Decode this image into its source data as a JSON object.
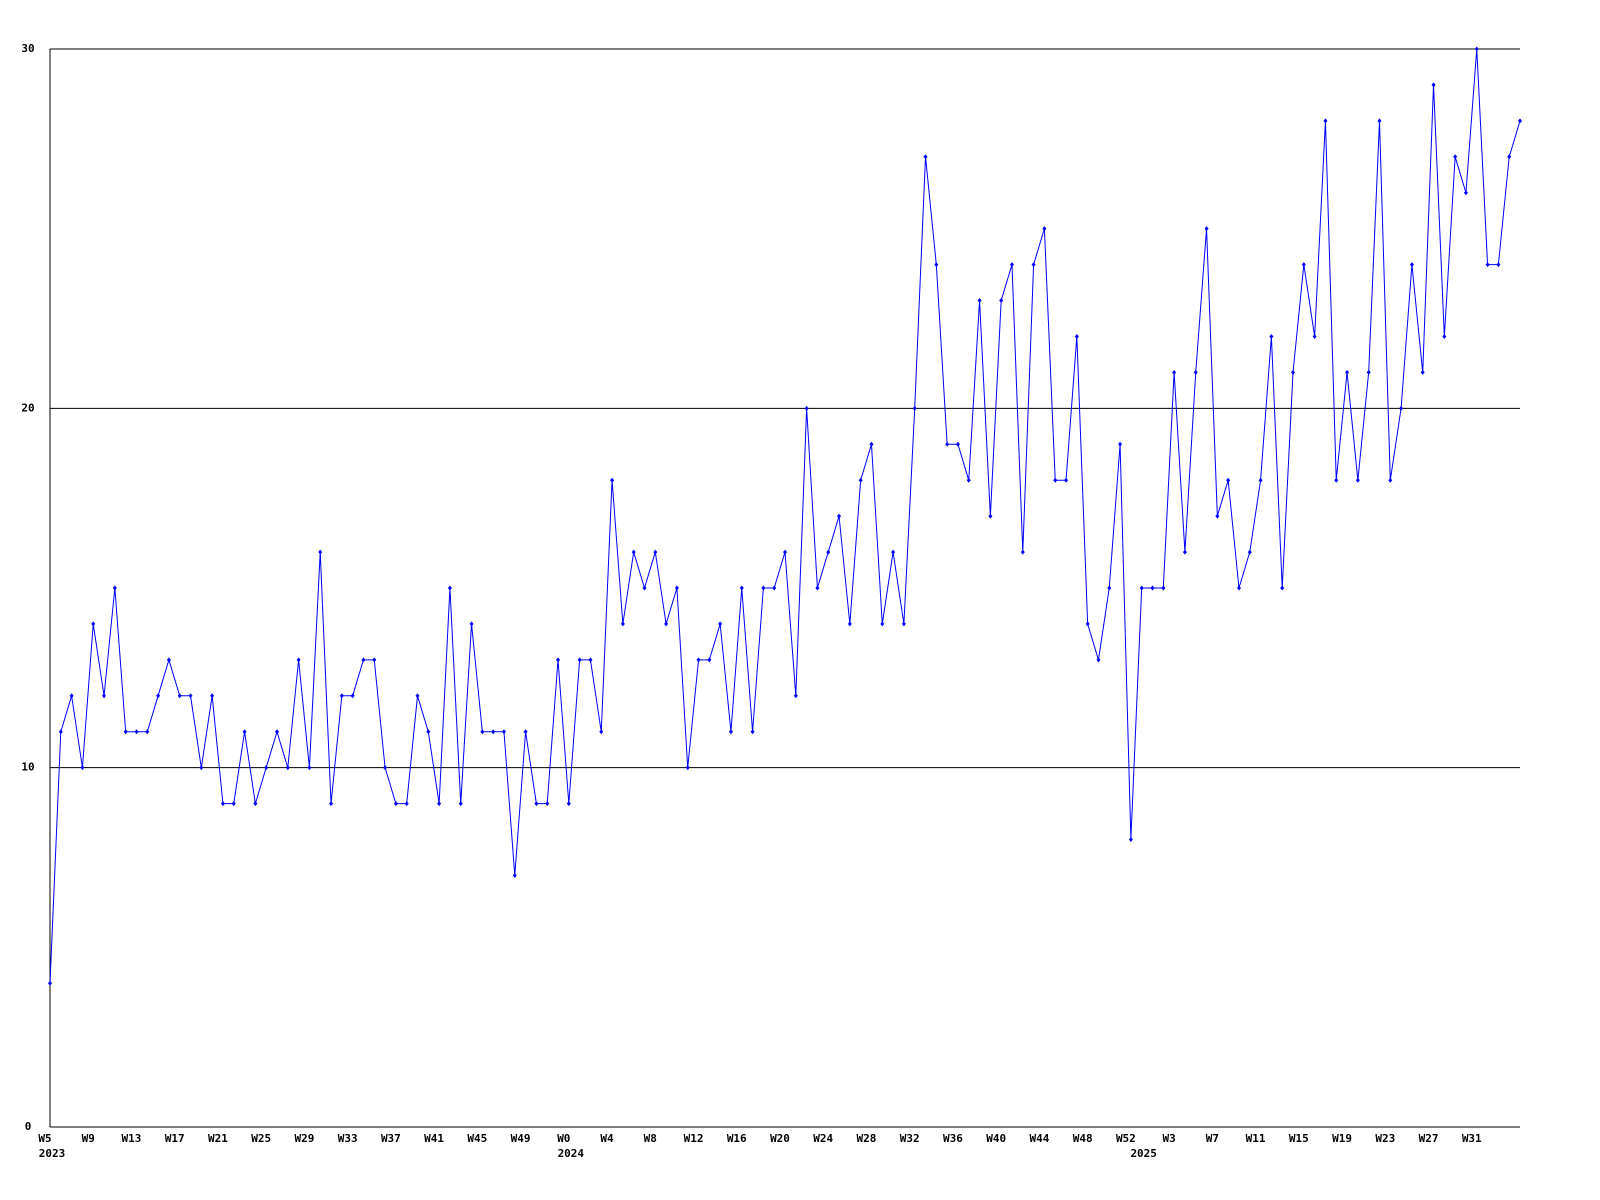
{
  "chart_data": {
    "type": "line",
    "color": "#0000ff",
    "grid": true,
    "ylim": [
      0,
      30
    ],
    "yticks": [
      0,
      10,
      20,
      30
    ],
    "categories": [
      {
        "week": "W5",
        "year": "2023"
      },
      null,
      null,
      null,
      {
        "week": "W9"
      },
      null,
      null,
      null,
      {
        "week": "W13"
      },
      null,
      null,
      null,
      {
        "week": "W17"
      },
      null,
      null,
      null,
      {
        "week": "W21"
      },
      null,
      null,
      null,
      {
        "week": "W25"
      },
      null,
      null,
      null,
      {
        "week": "W29"
      },
      null,
      null,
      null,
      {
        "week": "W33"
      },
      null,
      null,
      null,
      {
        "week": "W37"
      },
      null,
      null,
      null,
      {
        "week": "W41"
      },
      null,
      null,
      null,
      {
        "week": "W45"
      },
      null,
      null,
      null,
      {
        "week": "W49"
      },
      null,
      null,
      null,
      {
        "week": "W0",
        "year": "2024"
      },
      null,
      null,
      null,
      {
        "week": "W4"
      },
      null,
      null,
      null,
      {
        "week": "W8"
      },
      null,
      null,
      null,
      {
        "week": "W12"
      },
      null,
      null,
      null,
      {
        "week": "W16"
      },
      null,
      null,
      null,
      {
        "week": "W20"
      },
      null,
      null,
      null,
      {
        "week": "W24"
      },
      null,
      null,
      null,
      {
        "week": "W28"
      },
      null,
      null,
      null,
      {
        "week": "W32"
      },
      null,
      null,
      null,
      {
        "week": "W36"
      },
      null,
      null,
      null,
      {
        "week": "W40"
      },
      null,
      null,
      null,
      {
        "week": "W44"
      },
      null,
      null,
      null,
      {
        "week": "W48"
      },
      null,
      null,
      null,
      {
        "week": "W52"
      },
      {
        "year": "2025"
      },
      null,
      null,
      {
        "week": "W3"
      },
      null,
      null,
      null,
      {
        "week": "W7"
      },
      null,
      null,
      null,
      {
        "week": "W11"
      },
      null,
      null,
      null,
      {
        "week": "W15"
      },
      null,
      null,
      null,
      {
        "week": "W19"
      },
      null,
      null,
      null,
      {
        "week": "W23"
      },
      null,
      null,
      null,
      {
        "week": "W27"
      },
      null,
      null,
      null,
      {
        "week": "W31"
      },
      null,
      null,
      null,
      null
    ],
    "values": [
      4,
      11,
      12,
      10,
      14,
      12,
      15,
      11,
      11,
      11,
      12,
      13,
      12,
      12,
      10,
      12,
      9,
      9,
      11,
      9,
      10,
      11,
      10,
      13,
      10,
      16,
      9,
      12,
      12,
      13,
      13,
      10,
      9,
      9,
      12,
      11,
      9,
      15,
      9,
      14,
      11,
      11,
      11,
      7,
      11,
      9,
      9,
      13,
      9,
      13,
      13,
      11,
      18,
      14,
      16,
      15,
      16,
      14,
      15,
      10,
      13,
      13,
      14,
      11,
      15,
      11,
      15,
      15,
      16,
      12,
      20,
      15,
      16,
      17,
      14,
      18,
      19,
      14,
      16,
      14,
      20,
      27,
      24,
      19,
      19,
      18,
      23,
      17,
      23,
      24,
      16,
      24,
      25,
      18,
      18,
      22,
      14,
      13,
      15,
      19,
      8,
      15,
      15,
      15,
      21,
      16,
      21,
      25,
      17,
      18,
      15,
      16,
      18,
      22,
      15,
      21,
      24,
      22,
      28,
      18,
      21,
      18,
      21,
      28,
      18,
      20,
      24,
      21,
      29,
      22,
      27,
      26,
      30,
      24,
      24,
      27,
      28
    ]
  }
}
